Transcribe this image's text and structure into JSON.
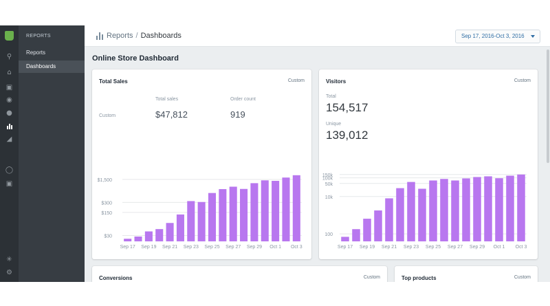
{
  "rail": {
    "icons": [
      "store-logo",
      "search-icon",
      "home-icon",
      "orders-icon",
      "products-icon",
      "customers-icon",
      "reports-icon",
      "discounts-icon",
      "online-store-icon",
      "sales-channel-icon",
      "apps-icon",
      "settings-icon"
    ]
  },
  "subnav": {
    "heading": "REPORTS",
    "items": [
      {
        "label": "Reports",
        "active": false
      },
      {
        "label": "Dashboards",
        "active": true
      }
    ]
  },
  "header": {
    "crumb_parent": "Reports",
    "crumb_sep": "/",
    "crumb_current": "Dashboards",
    "date_range": "Sep 17, 2016-Oct 3, 2016"
  },
  "page_title": "Online Store Dashboard",
  "total_sales": {
    "title": "Total Sales",
    "link": "Custom",
    "row_label": "Custom",
    "col1_label": "Total sales",
    "col1_value": "$47,812",
    "col2_label": "Order count",
    "col2_value": "919"
  },
  "visitors": {
    "title": "Visitors",
    "link": "Custom",
    "total_label": "Total",
    "total_value": "154,517",
    "unique_label": "Unique",
    "unique_value": "139,012"
  },
  "conversions": {
    "title": "Conversions",
    "link": "Custom"
  },
  "top_products": {
    "title": "Top products",
    "link": "Custom"
  },
  "colors": {
    "bar": "#b877ef",
    "grid": "#e6e8ea",
    "tick": "#8a96a2"
  },
  "chart_data": [
    {
      "type": "bar",
      "title": "",
      "x": [
        "Sep 17",
        "Sep 18",
        "Sep 19",
        "Sep 20",
        "Sep 21",
        "Sep 22",
        "Sep 23",
        "Sep 24",
        "Sep 25",
        "Sep 26",
        "Sep 27",
        "Sep 28",
        "Sep 29",
        "Sep 30",
        "Oct 1",
        "Oct 2",
        "Oct 3"
      ],
      "x_tick_labels": [
        "Sep 17",
        "Sep 19",
        "Sep 21",
        "Sep 23",
        "Sep 25",
        "Sep 27",
        "Sep 29",
        "Oct 1",
        "Oct 3"
      ],
      "y_scale": "log",
      "y_tick_labels": [
        "$30",
        "$150",
        "$300",
        "$1,500"
      ],
      "y_tick_values": [
        30,
        150,
        300,
        1500
      ],
      "ylim": [
        20,
        2400
      ],
      "values": [
        24,
        28,
        40,
        47,
        72,
        130,
        330,
        310,
        580,
        760,
        900,
        770,
        1150,
        1400,
        1350,
        1700,
        2000
      ],
      "grid": true
    },
    {
      "type": "bar",
      "title": "",
      "x": [
        "Sep 17",
        "Sep 18",
        "Sep 19",
        "Sep 20",
        "Sep 21",
        "Sep 22",
        "Sep 23",
        "Sep 24",
        "Sep 25",
        "Sep 26",
        "Sep 27",
        "Sep 28",
        "Sep 29",
        "Sep 30",
        "Oct 1",
        "Oct 2",
        "Oct 3"
      ],
      "x_tick_labels": [
        "Sep 17",
        "Sep 19",
        "Sep 21",
        "Sep 23",
        "Sep 25",
        "Sep 27",
        "Sep 29",
        "Oct 1",
        "Oct 3"
      ],
      "y_scale": "log",
      "y_tick_labels": [
        "100",
        "10k",
        "50k",
        "100k",
        "150k"
      ],
      "y_tick_values": [
        100,
        10000,
        50000,
        100000,
        150000
      ],
      "ylim": [
        40,
        190000
      ],
      "values": [
        70,
        180,
        650,
        1800,
        8000,
        28000,
        60000,
        26000,
        72000,
        87000,
        72000,
        93000,
        110000,
        120000,
        95000,
        130000,
        150000
      ],
      "grid": true
    }
  ]
}
